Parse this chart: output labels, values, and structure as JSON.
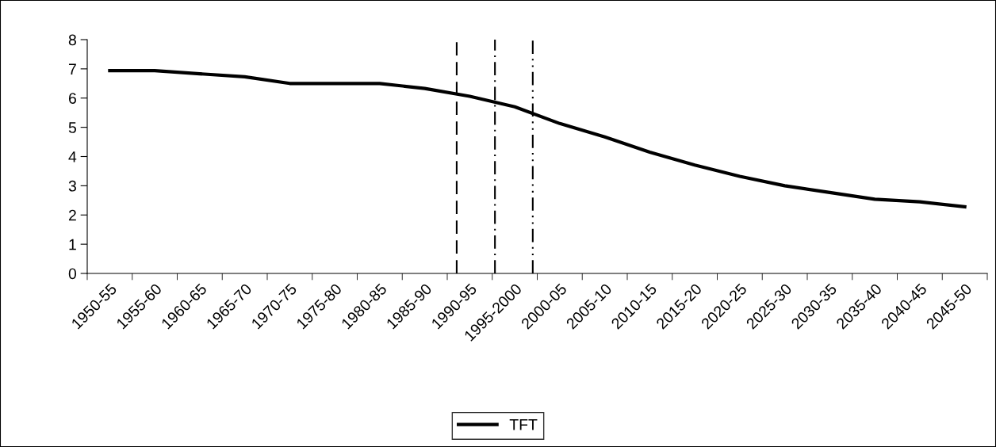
{
  "chart_data": {
    "type": "line",
    "categories": [
      "1950-55",
      "1955-60",
      "1960-65",
      "1965-70",
      "1970-75",
      "1975-80",
      "1980-85",
      "1985-90",
      "1990-95",
      "1995-2000",
      "2000-05",
      "2005-10",
      "2010-15",
      "2015-20",
      "2020-25",
      "2025-30",
      "2030-35",
      "2035-40",
      "2040-45",
      "2045-50"
    ],
    "series": [
      {
        "name": "TFT",
        "color": "#000000",
        "values": [
          6.94,
          6.94,
          6.83,
          6.73,
          6.5,
          6.5,
          6.5,
          6.33,
          6.06,
          5.7,
          5.13,
          4.67,
          4.15,
          3.71,
          3.32,
          3.0,
          2.77,
          2.54,
          2.45,
          2.28
        ]
      }
    ],
    "ylim": [
      0,
      8
    ],
    "yticks": [
      0,
      1,
      2,
      3,
      4,
      5,
      6,
      7,
      8
    ],
    "legend": "bottom",
    "grid": false,
    "marker": "none",
    "line_style": "solid"
  }
}
